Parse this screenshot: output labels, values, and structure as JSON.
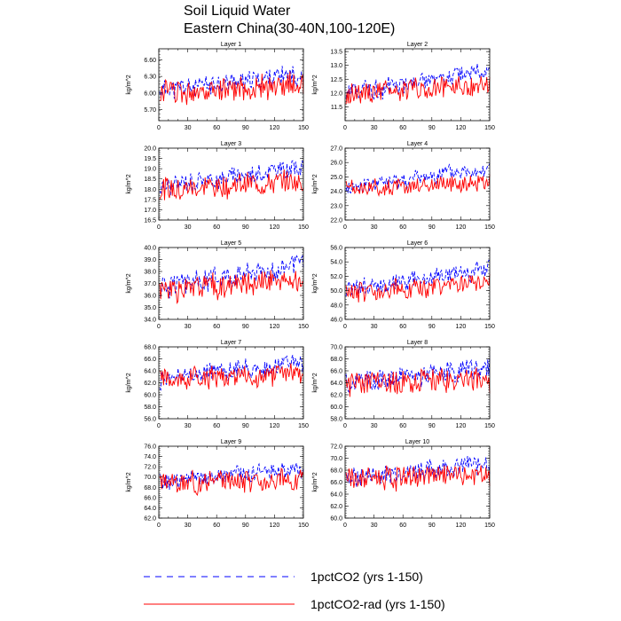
{
  "figure": {
    "title_line1": "Soil Liquid Water",
    "title_line2": "Eastern China(30-40N,100-120E)"
  },
  "legend": {
    "items": [
      {
        "label": "1pctCO2 (yrs 1-150)",
        "color": "#0000ff",
        "dash": "dashed"
      },
      {
        "label": "1pctCO2-rad (yrs 1-150)",
        "color": "#ff0000",
        "dash": "solid"
      }
    ]
  },
  "chart_data": [
    {
      "type": "line",
      "title": "Layer 1",
      "ylabel": "kg/m^2",
      "xlim": [
        0,
        150
      ],
      "xticks": [
        0,
        30,
        60,
        90,
        120,
        150
      ],
      "ylim": [
        5.5,
        6.8
      ],
      "yticks": [
        5.7,
        6.0,
        6.3,
        6.6
      ],
      "ytick_labels": [
        "5.70",
        "6.00",
        "6.30",
        "6.60"
      ],
      "series": [
        {
          "name": "1pctCO2 (yrs 1-150)",
          "start": 6.05,
          "end": 6.35,
          "amp": 0.16,
          "seed": 11
        },
        {
          "name": "1pctCO2-rad (yrs 1-150)",
          "start": 6.0,
          "end": 6.15,
          "amp": 0.2,
          "seed": 12
        }
      ]
    },
    {
      "type": "line",
      "title": "Layer 2",
      "ylabel": "kg/m^2",
      "xlim": [
        0,
        150
      ],
      "xticks": [
        0,
        30,
        60,
        90,
        120,
        150
      ],
      "ylim": [
        11.0,
        13.6
      ],
      "yticks": [
        11.5,
        12.0,
        12.5,
        13.0,
        13.5
      ],
      "ytick_labels": [
        "11.5",
        "12.0",
        "12.5",
        "13.0",
        "13.5"
      ],
      "series": [
        {
          "name": "1pctCO2 (yrs 1-150)",
          "start": 12.0,
          "end": 12.8,
          "amp": 0.3,
          "seed": 21
        },
        {
          "name": "1pctCO2-rad (yrs 1-150)",
          "start": 12.0,
          "end": 12.3,
          "amp": 0.35,
          "seed": 22
        }
      ]
    },
    {
      "type": "line",
      "title": "Layer 3",
      "ylabel": "kg/m^2",
      "xlim": [
        0,
        150
      ],
      "xticks": [
        0,
        30,
        60,
        90,
        120,
        150
      ],
      "ylim": [
        16.5,
        20.0
      ],
      "yticks": [
        16.5,
        17.0,
        17.5,
        18.0,
        18.5,
        19.0,
        19.5,
        20.0
      ],
      "ytick_labels": [
        "16.5",
        "17.0",
        "17.5",
        "18.0",
        "18.5",
        "19.0",
        "19.5",
        "20.0"
      ],
      "series": [
        {
          "name": "1pctCO2 (yrs 1-150)",
          "start": 18.1,
          "end": 19.1,
          "amp": 0.4,
          "seed": 31
        },
        {
          "name": "1pctCO2-rad (yrs 1-150)",
          "start": 18.0,
          "end": 18.4,
          "amp": 0.5,
          "seed": 32
        }
      ]
    },
    {
      "type": "line",
      "title": "Layer 4",
      "ylabel": "kg/m^2",
      "xlim": [
        0,
        150
      ],
      "xticks": [
        0,
        30,
        60,
        90,
        120,
        150
      ],
      "ylim": [
        22.0,
        27.0
      ],
      "yticks": [
        22.0,
        23.0,
        24.0,
        25.0,
        26.0,
        27.0
      ],
      "ytick_labels": [
        "22.0",
        "23.0",
        "24.0",
        "25.0",
        "26.0",
        "27.0"
      ],
      "series": [
        {
          "name": "1pctCO2 (yrs 1-150)",
          "start": 24.2,
          "end": 25.6,
          "amp": 0.5,
          "seed": 41
        },
        {
          "name": "1pctCO2-rad (yrs 1-150)",
          "start": 24.1,
          "end": 24.7,
          "amp": 0.55,
          "seed": 42
        }
      ]
    },
    {
      "type": "line",
      "title": "Layer 5",
      "ylabel": "kg/m^2",
      "xlim": [
        0,
        150
      ],
      "xticks": [
        0,
        30,
        60,
        90,
        120,
        150
      ],
      "ylim": [
        34.0,
        40.0
      ],
      "yticks": [
        34.0,
        35.0,
        36.0,
        37.0,
        38.0,
        39.0,
        40.0
      ],
      "ytick_labels": [
        "34.0",
        "35.0",
        "36.0",
        "37.0",
        "38.0",
        "39.0",
        "40.0"
      ],
      "series": [
        {
          "name": "1pctCO2 (yrs 1-150)",
          "start": 36.6,
          "end": 38.6,
          "amp": 0.8,
          "seed": 51
        },
        {
          "name": "1pctCO2-rad (yrs 1-150)",
          "start": 36.4,
          "end": 37.3,
          "amp": 0.9,
          "seed": 52
        }
      ]
    },
    {
      "type": "line",
      "title": "Layer 6",
      "ylabel": "kg/m^2",
      "xlim": [
        0,
        150
      ],
      "xticks": [
        0,
        30,
        60,
        90,
        120,
        150
      ],
      "ylim": [
        46.0,
        56.0
      ],
      "yticks": [
        46.0,
        48.0,
        50.0,
        52.0,
        54.0,
        56.0
      ],
      "ytick_labels": [
        "46.0",
        "48.0",
        "50.0",
        "52.0",
        "54.0",
        "56.0"
      ],
      "series": [
        {
          "name": "1pctCO2 (yrs 1-150)",
          "start": 50.0,
          "end": 53.0,
          "amp": 1.1,
          "seed": 61
        },
        {
          "name": "1pctCO2-rad (yrs 1-150)",
          "start": 49.8,
          "end": 51.0,
          "amp": 1.2,
          "seed": 62
        }
      ]
    },
    {
      "type": "line",
      "title": "Layer 7",
      "ylabel": "kg/m^2",
      "xlim": [
        0,
        150
      ],
      "xticks": [
        0,
        30,
        60,
        90,
        120,
        150
      ],
      "ylim": [
        56.0,
        68.0
      ],
      "yticks": [
        56.0,
        58.0,
        60.0,
        62.0,
        64.0,
        66.0,
        68.0
      ],
      "ytick_labels": [
        "56.0",
        "58.0",
        "60.0",
        "62.0",
        "64.0",
        "66.0",
        "68.0"
      ],
      "series": [
        {
          "name": "1pctCO2 (yrs 1-150)",
          "start": 62.8,
          "end": 65.5,
          "amp": 1.4,
          "seed": 71
        },
        {
          "name": "1pctCO2-rad (yrs 1-150)",
          "start": 62.5,
          "end": 63.5,
          "amp": 1.6,
          "seed": 72
        }
      ]
    },
    {
      "type": "line",
      "title": "Layer 8",
      "ylabel": "kg/m^2",
      "xlim": [
        0,
        150
      ],
      "xticks": [
        0,
        30,
        60,
        90,
        120,
        150
      ],
      "ylim": [
        58.0,
        70.0
      ],
      "yticks": [
        58.0,
        60.0,
        62.0,
        64.0,
        66.0,
        68.0,
        70.0
      ],
      "ytick_labels": [
        "58.0",
        "60.0",
        "62.0",
        "64.0",
        "66.0",
        "68.0",
        "70.0"
      ],
      "series": [
        {
          "name": "1pctCO2 (yrs 1-150)",
          "start": 64.0,
          "end": 66.5,
          "amp": 1.6,
          "seed": 81
        },
        {
          "name": "1pctCO2-rad (yrs 1-150)",
          "start": 63.8,
          "end": 64.5,
          "amp": 1.8,
          "seed": 82
        }
      ]
    },
    {
      "type": "line",
      "title": "Layer 9",
      "ylabel": "kg/m^2",
      "xlim": [
        0,
        150
      ],
      "xticks": [
        0,
        30,
        60,
        90,
        120,
        150
      ],
      "ylim": [
        62.0,
        76.0
      ],
      "yticks": [
        62.0,
        64.0,
        66.0,
        68.0,
        70.0,
        72.0,
        74.0,
        76.0
      ],
      "ytick_labels": [
        "62.0",
        "64.0",
        "66.0",
        "68.0",
        "70.0",
        "72.0",
        "74.0",
        "76.0"
      ],
      "series": [
        {
          "name": "1pctCO2 (yrs 1-150)",
          "start": 69.0,
          "end": 71.5,
          "amp": 1.5,
          "seed": 91
        },
        {
          "name": "1pctCO2-rad (yrs 1-150)",
          "start": 68.8,
          "end": 69.6,
          "amp": 1.8,
          "seed": 92
        }
      ]
    },
    {
      "type": "line",
      "title": "Layer 10",
      "ylabel": "kg/m^2",
      "xlim": [
        0,
        150
      ],
      "xticks": [
        0,
        30,
        60,
        90,
        120,
        150
      ],
      "ylim": [
        60.0,
        72.0
      ],
      "yticks": [
        60.0,
        62.0,
        64.0,
        66.0,
        68.0,
        70.0,
        72.0
      ],
      "ytick_labels": [
        "60.0",
        "62.0",
        "64.0",
        "66.0",
        "68.0",
        "70.0",
        "72.0"
      ],
      "series": [
        {
          "name": "1pctCO2 (yrs 1-150)",
          "start": 66.7,
          "end": 69.2,
          "amp": 1.5,
          "seed": 101
        },
        {
          "name": "1pctCO2-rad (yrs 1-150)",
          "start": 66.5,
          "end": 67.3,
          "amp": 1.7,
          "seed": 102
        }
      ]
    }
  ]
}
